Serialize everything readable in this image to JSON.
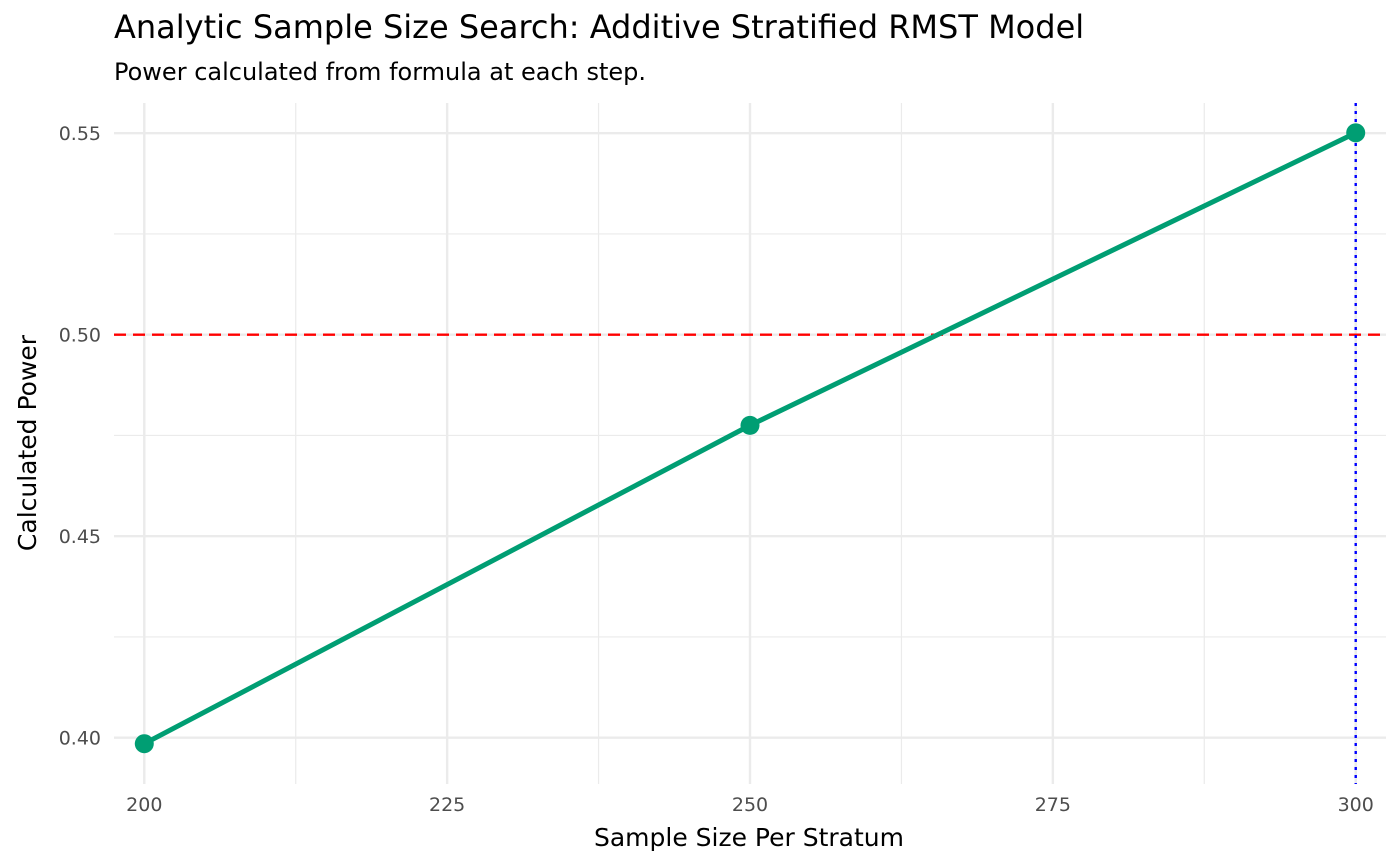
{
  "chart_data": {
    "type": "line",
    "title": "Analytic Sample Size Search: Additive Stratified RMST Model",
    "subtitle": "Power calculated from formula at each step.",
    "xlabel": "Sample Size Per Stratum",
    "ylabel": "Calculated Power",
    "x": [
      200,
      250,
      300
    ],
    "series": [
      {
        "values": [
          0.3985,
          0.4775,
          0.5501
        ],
        "color": "#009e73"
      }
    ],
    "xlim": [
      197.5,
      302.5
    ],
    "ylim": [
      0.3885,
      0.5575
    ],
    "xticks": [
      200,
      225,
      250,
      275,
      300
    ],
    "xtick_labels": [
      "200",
      "225",
      "250",
      "275",
      "300"
    ],
    "yticks": [
      0.4,
      0.45,
      0.5,
      0.55
    ],
    "ytick_labels": [
      "0.40",
      "0.45",
      "0.50",
      "0.55"
    ],
    "reference_lines": [
      {
        "orientation": "horizontal",
        "value": 0.5,
        "color": "#ff0000",
        "style": "dashed"
      },
      {
        "orientation": "vertical",
        "value": 300,
        "color": "#0000ff",
        "style": "dotted"
      }
    ],
    "grid": true,
    "legend": "none"
  }
}
